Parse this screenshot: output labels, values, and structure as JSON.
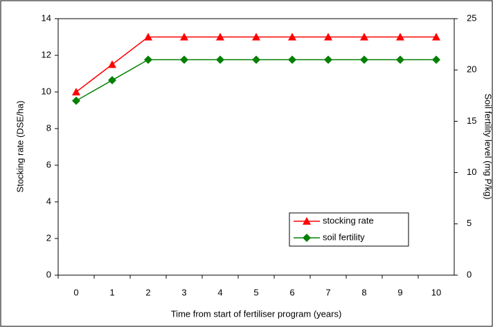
{
  "chart_data": {
    "type": "line",
    "x_label": "Time from start of fertiliser program (years)",
    "y_label": "Stocking rate (DSE/ha)",
    "y2_label": "Soil fertility level (mg P/kg)",
    "x": [
      0,
      1,
      2,
      3,
      4,
      5,
      6,
      7,
      8,
      9,
      10
    ],
    "xlim": [
      -0.5,
      10.5
    ],
    "xticks": [
      0,
      1,
      2,
      3,
      4,
      5,
      6,
      7,
      8,
      9,
      10
    ],
    "ylim": [
      0,
      14
    ],
    "yticks": [
      0,
      2,
      4,
      6,
      8,
      10,
      12,
      14
    ],
    "y2lim": [
      0,
      25
    ],
    "y2ticks": [
      0,
      5,
      10,
      15,
      20,
      25
    ],
    "legend": "lower right",
    "series": [
      {
        "name": "stocking rate",
        "color": "#ff0000",
        "marker": "triangle",
        "values": [
          10,
          11.5,
          13,
          13,
          13,
          13,
          13,
          13,
          13,
          13,
          13
        ]
      },
      {
        "name": "soil fertility",
        "color": "#008000",
        "marker": "diamond",
        "axis": "y2",
        "values": [
          17,
          19,
          21,
          21,
          21,
          21,
          21,
          21,
          21,
          21,
          21
        ]
      }
    ]
  }
}
